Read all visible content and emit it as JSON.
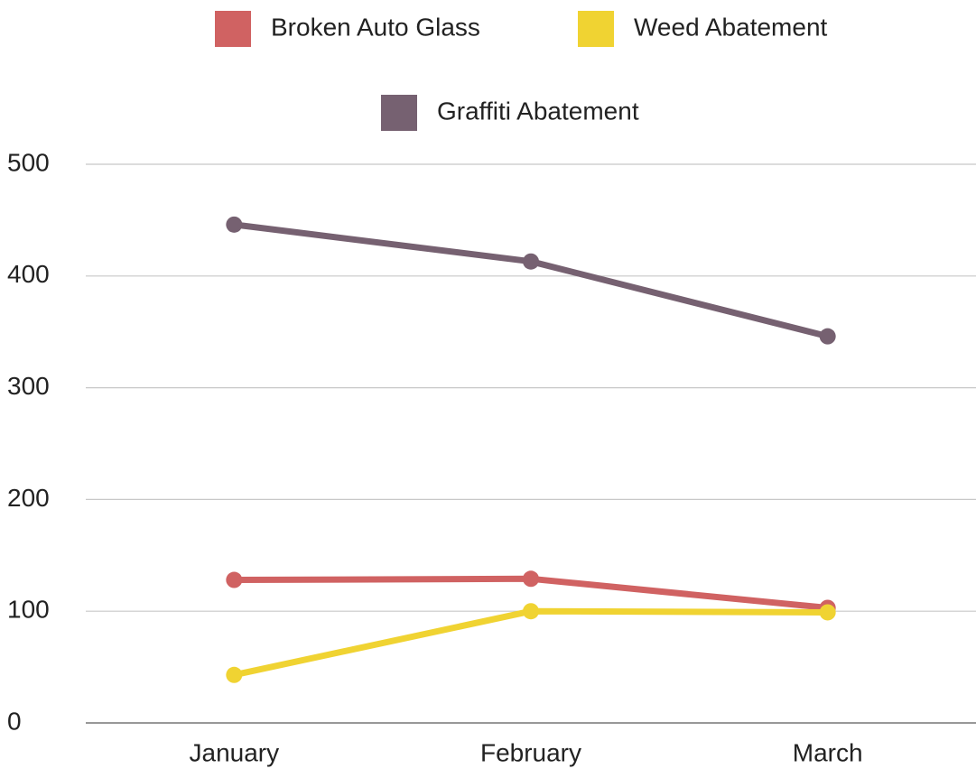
{
  "chart_data": {
    "type": "line",
    "categories": [
      "January",
      "February",
      "March"
    ],
    "series": [
      {
        "name": "Broken Auto Glass",
        "color": "#d06262",
        "values": [
          128,
          129,
          103
        ]
      },
      {
        "name": "Weed Abatement",
        "color": "#f0d332",
        "values": [
          43,
          100,
          99
        ]
      },
      {
        "name": "Graffiti Abatement",
        "color": "#766171",
        "values": [
          446,
          413,
          346
        ]
      }
    ],
    "ylim": [
      0,
      500
    ],
    "yticks": [
      0,
      100,
      200,
      300,
      400,
      500
    ],
    "grid": true,
    "legend": "top"
  }
}
